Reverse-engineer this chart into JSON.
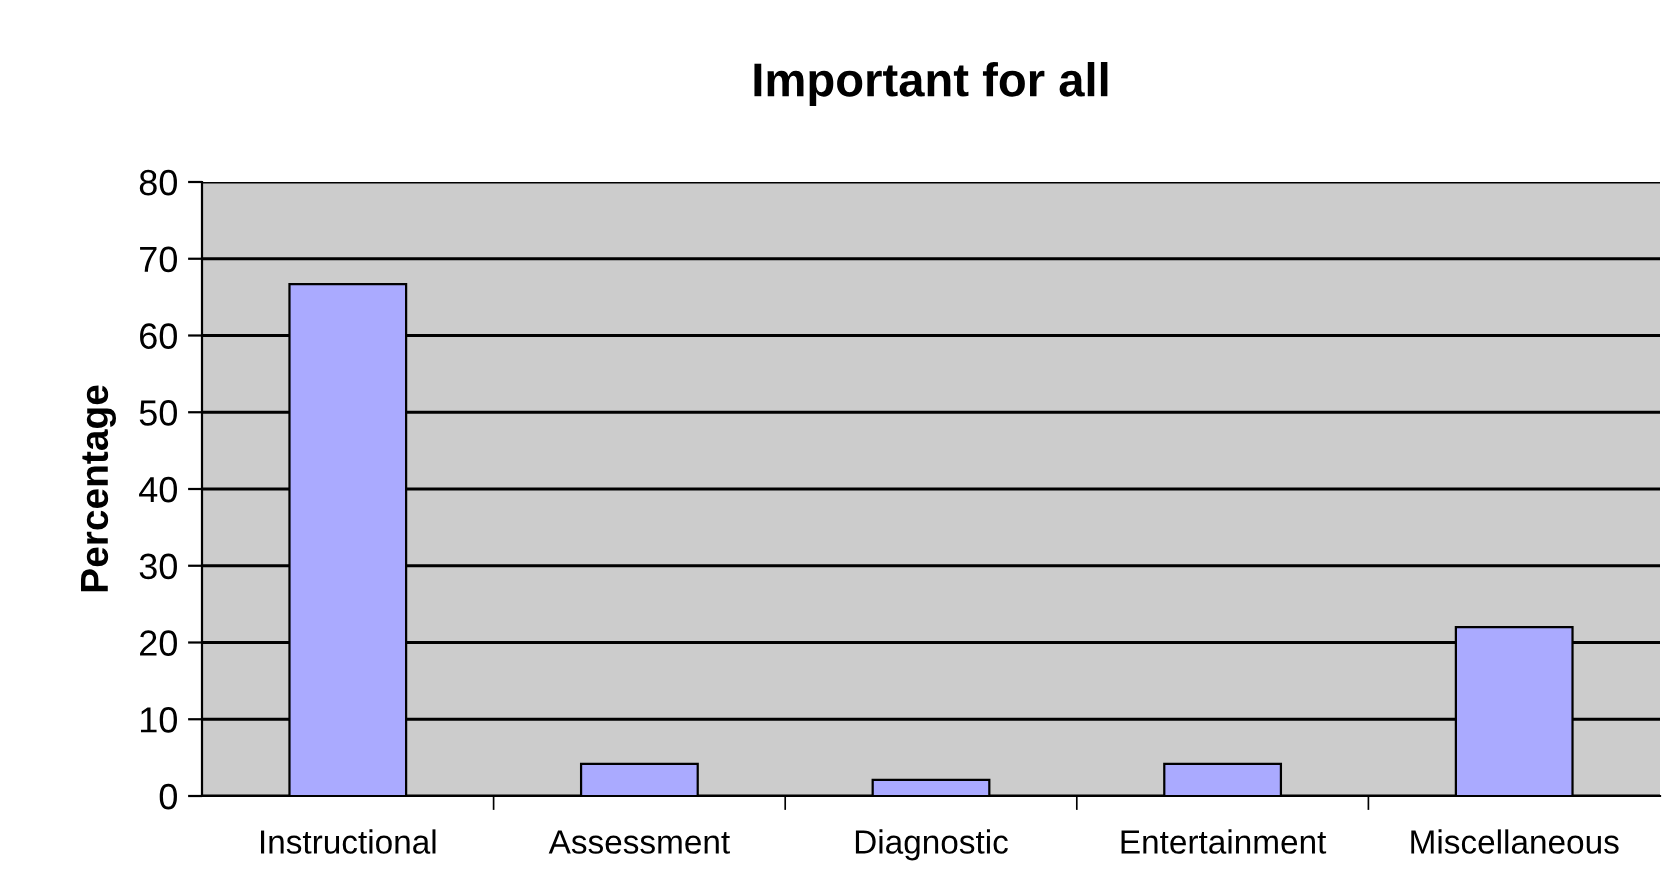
{
  "chart_data": {
    "type": "bar",
    "title": "Important for all",
    "ylabel": "Percentage",
    "categories": [
      "Instructional",
      "Assessment",
      "Diagnostic",
      "Entertainment",
      "Miscellaneous"
    ],
    "values": [
      66.7,
      4.2,
      2.1,
      4.2,
      22
    ],
    "color": "#aaaaff",
    "ylim": [
      0,
      80
    ],
    "yticks": [
      0,
      10,
      20,
      30,
      40,
      50,
      60,
      70,
      80
    ],
    "grid": "y"
  }
}
